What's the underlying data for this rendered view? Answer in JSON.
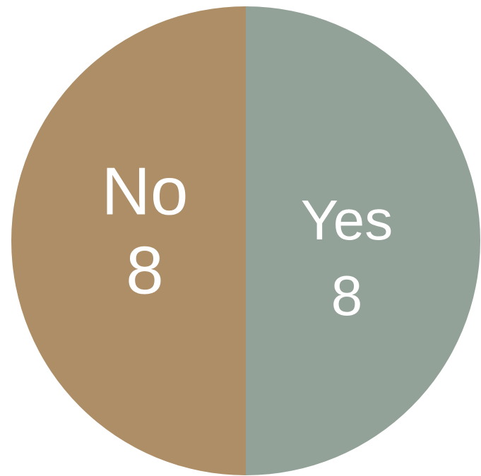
{
  "chart_data": {
    "type": "pie",
    "categories": [
      "Yes",
      "No"
    ],
    "values": [
      8,
      8
    ],
    "colors": [
      "#93a298",
      "#ad8e67"
    ]
  }
}
